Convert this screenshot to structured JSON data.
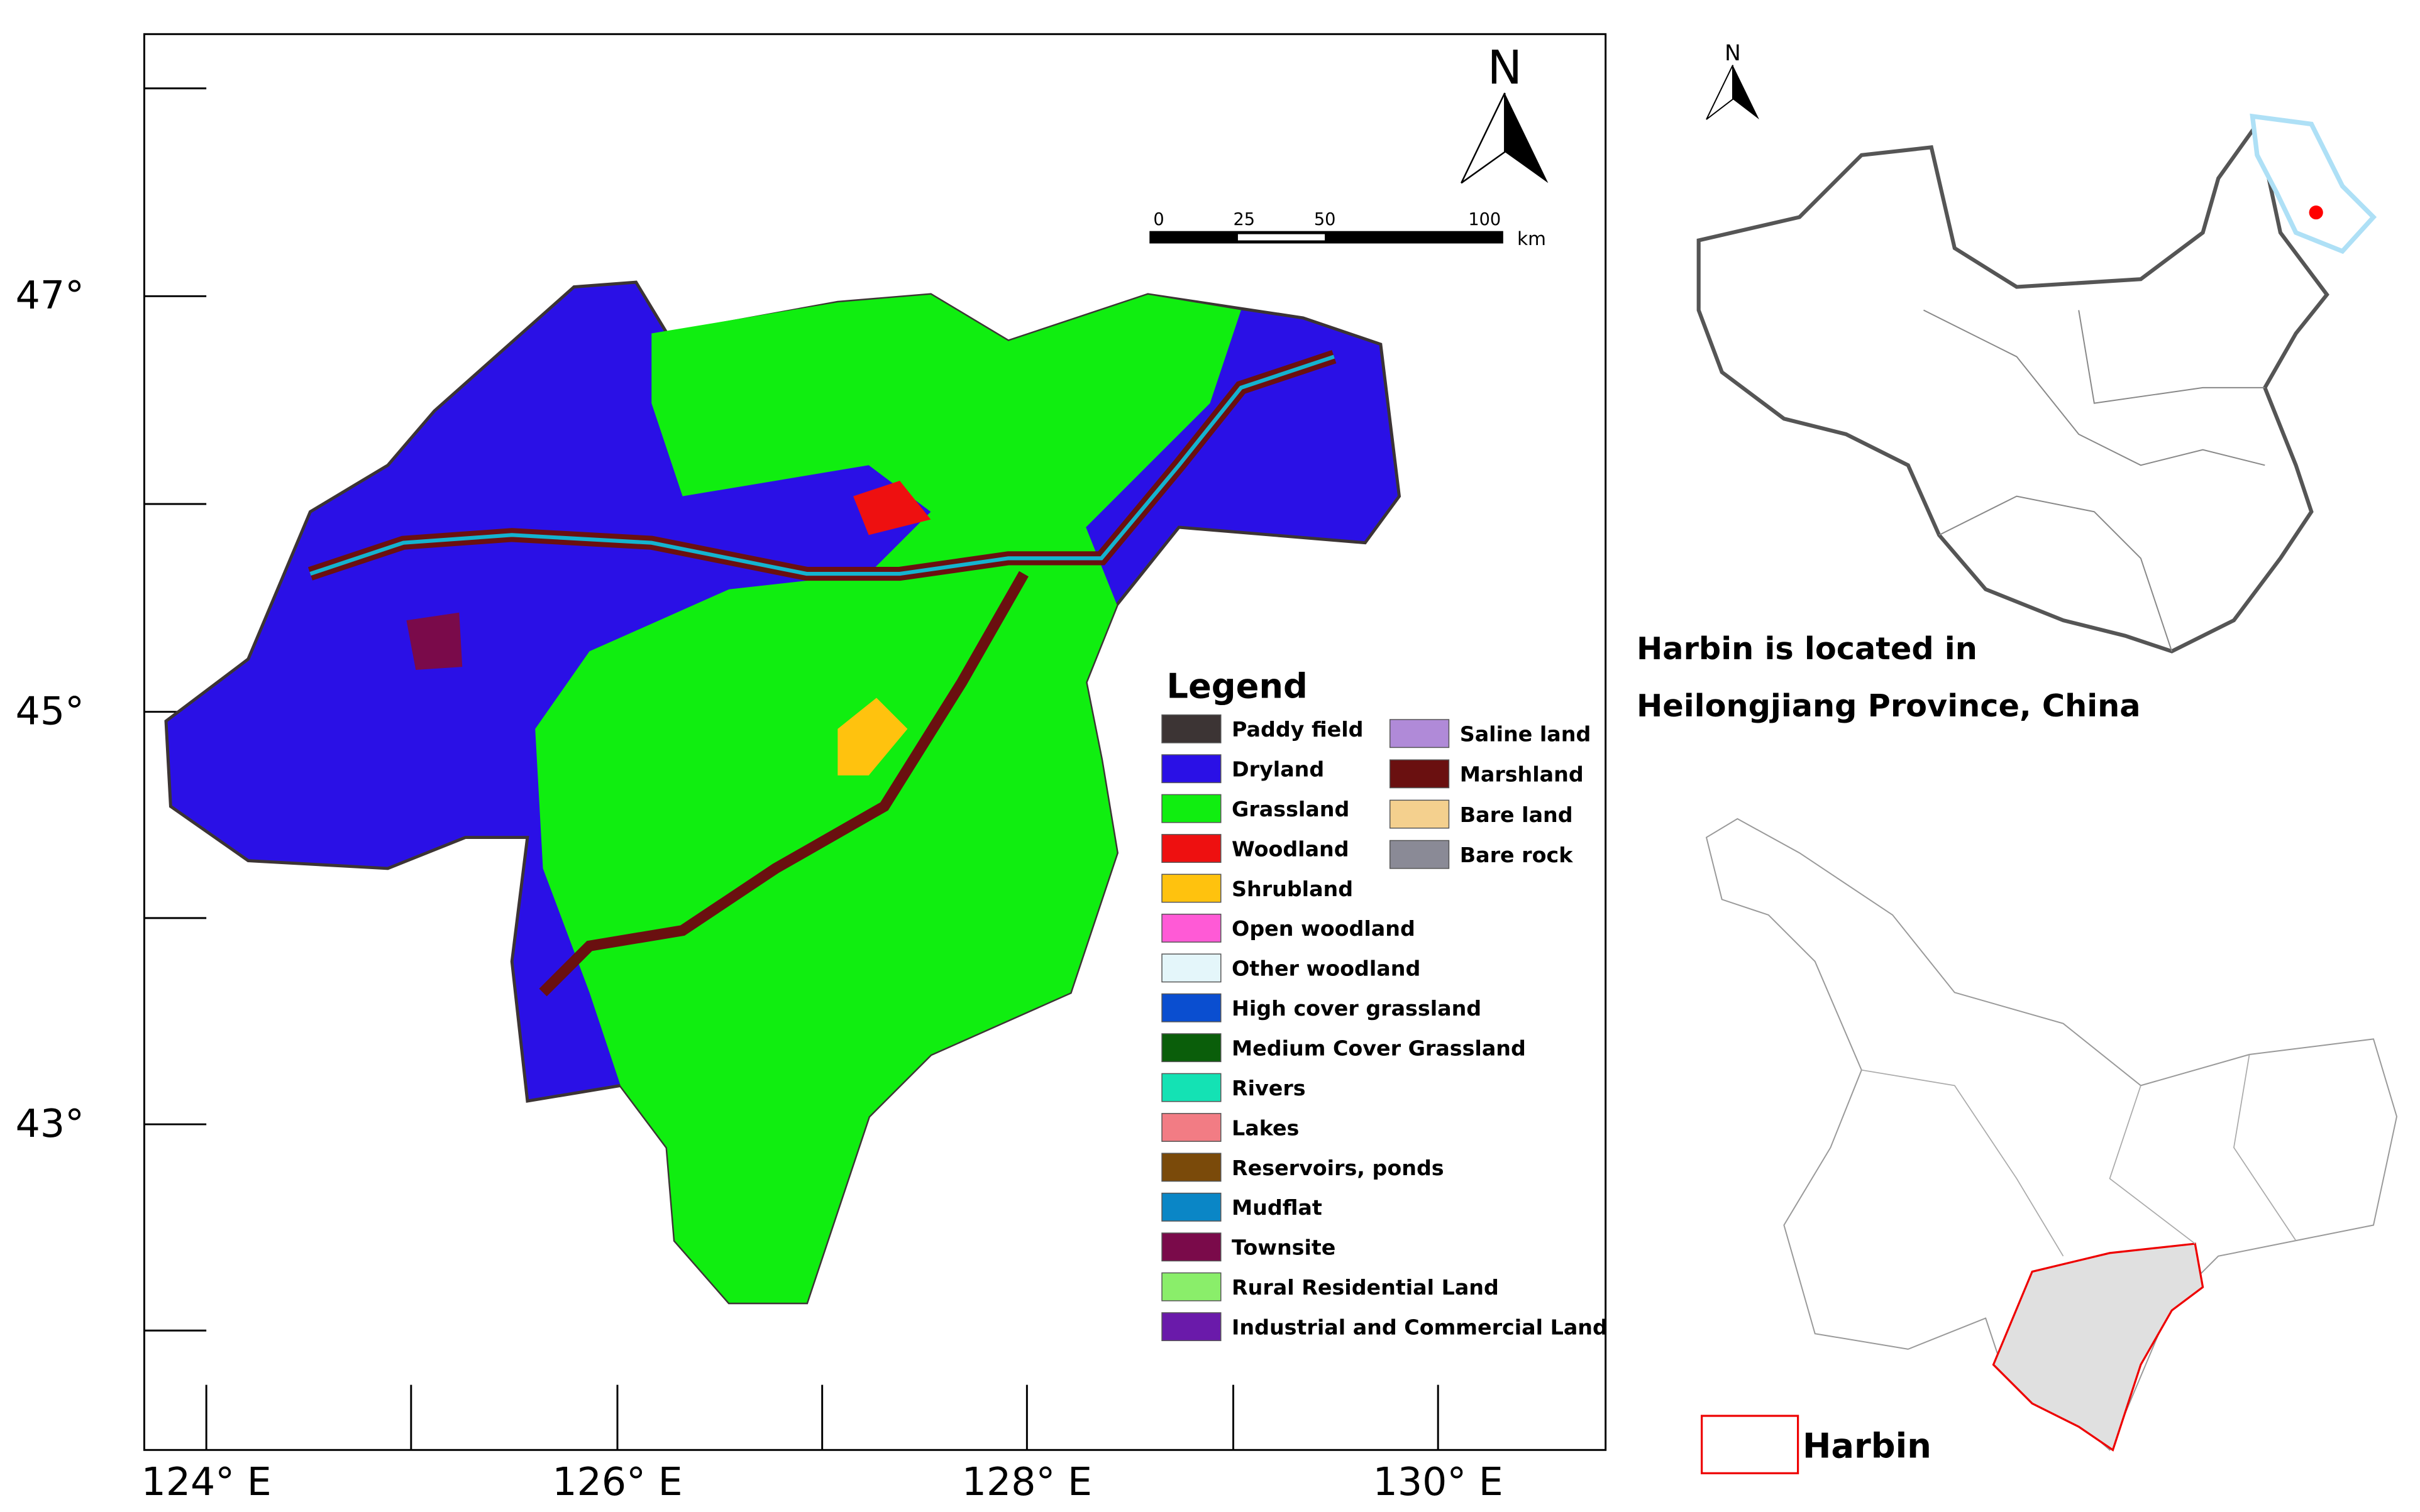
{
  "map": {
    "lat_labels": [
      "47°",
      "45°",
      "43°"
    ],
    "lon_labels": [
      "124° E",
      "126° E",
      "128° E",
      "130° E"
    ],
    "north": "N",
    "scale": {
      "ticks": [
        0,
        25,
        50,
        100
      ],
      "unit": "km"
    },
    "legend": {
      "title": "Legend",
      "items": [
        {
          "label": "Paddy field",
          "color": "#3c3434"
        },
        {
          "label": "Dryland",
          "color": "#2a10e6"
        },
        {
          "label": "Grassland",
          "color": "#10ee10"
        },
        {
          "label": "Woodland",
          "color": "#ee1010"
        },
        {
          "label": "Shrubland",
          "color": "#ffc20e"
        },
        {
          "label": "Open woodland",
          "color": "#ff5ad6"
        },
        {
          "label": "Other woodland",
          "color": "#e4f6fa"
        },
        {
          "label": "High cover grassland",
          "color": "#0a4ed0"
        },
        {
          "label": "Medium Cover Grassland",
          "color": "#0a5e0a"
        },
        {
          "label": "Rivers",
          "color": "#14e2b4"
        },
        {
          "label": "Lakes",
          "color": "#f27c84"
        },
        {
          "label": "Reservoirs, ponds",
          "color": "#7a4a0a"
        },
        {
          "label": "Mudflat",
          "color": "#0a86c6"
        },
        {
          "label": "Townsite",
          "color": "#7a0a4a"
        },
        {
          "label": "Rural Residential Land",
          "color": "#8aee6a"
        },
        {
          "label": "Industrial and Commercial Land",
          "color": "#6a1aaa"
        },
        {
          "label": "Saline land",
          "color": "#b08ad8"
        },
        {
          "label": "Marshland",
          "color": "#6a1010"
        },
        {
          "label": "Bare land",
          "color": "#f4d08e"
        },
        {
          "label": "Bare rock",
          "color": "#8a8a96"
        }
      ]
    }
  },
  "inset": {
    "north": "N",
    "caption": [
      "Harbin is located in",
      "Heilongjiang Province, China"
    ],
    "legend": "Harbin"
  }
}
